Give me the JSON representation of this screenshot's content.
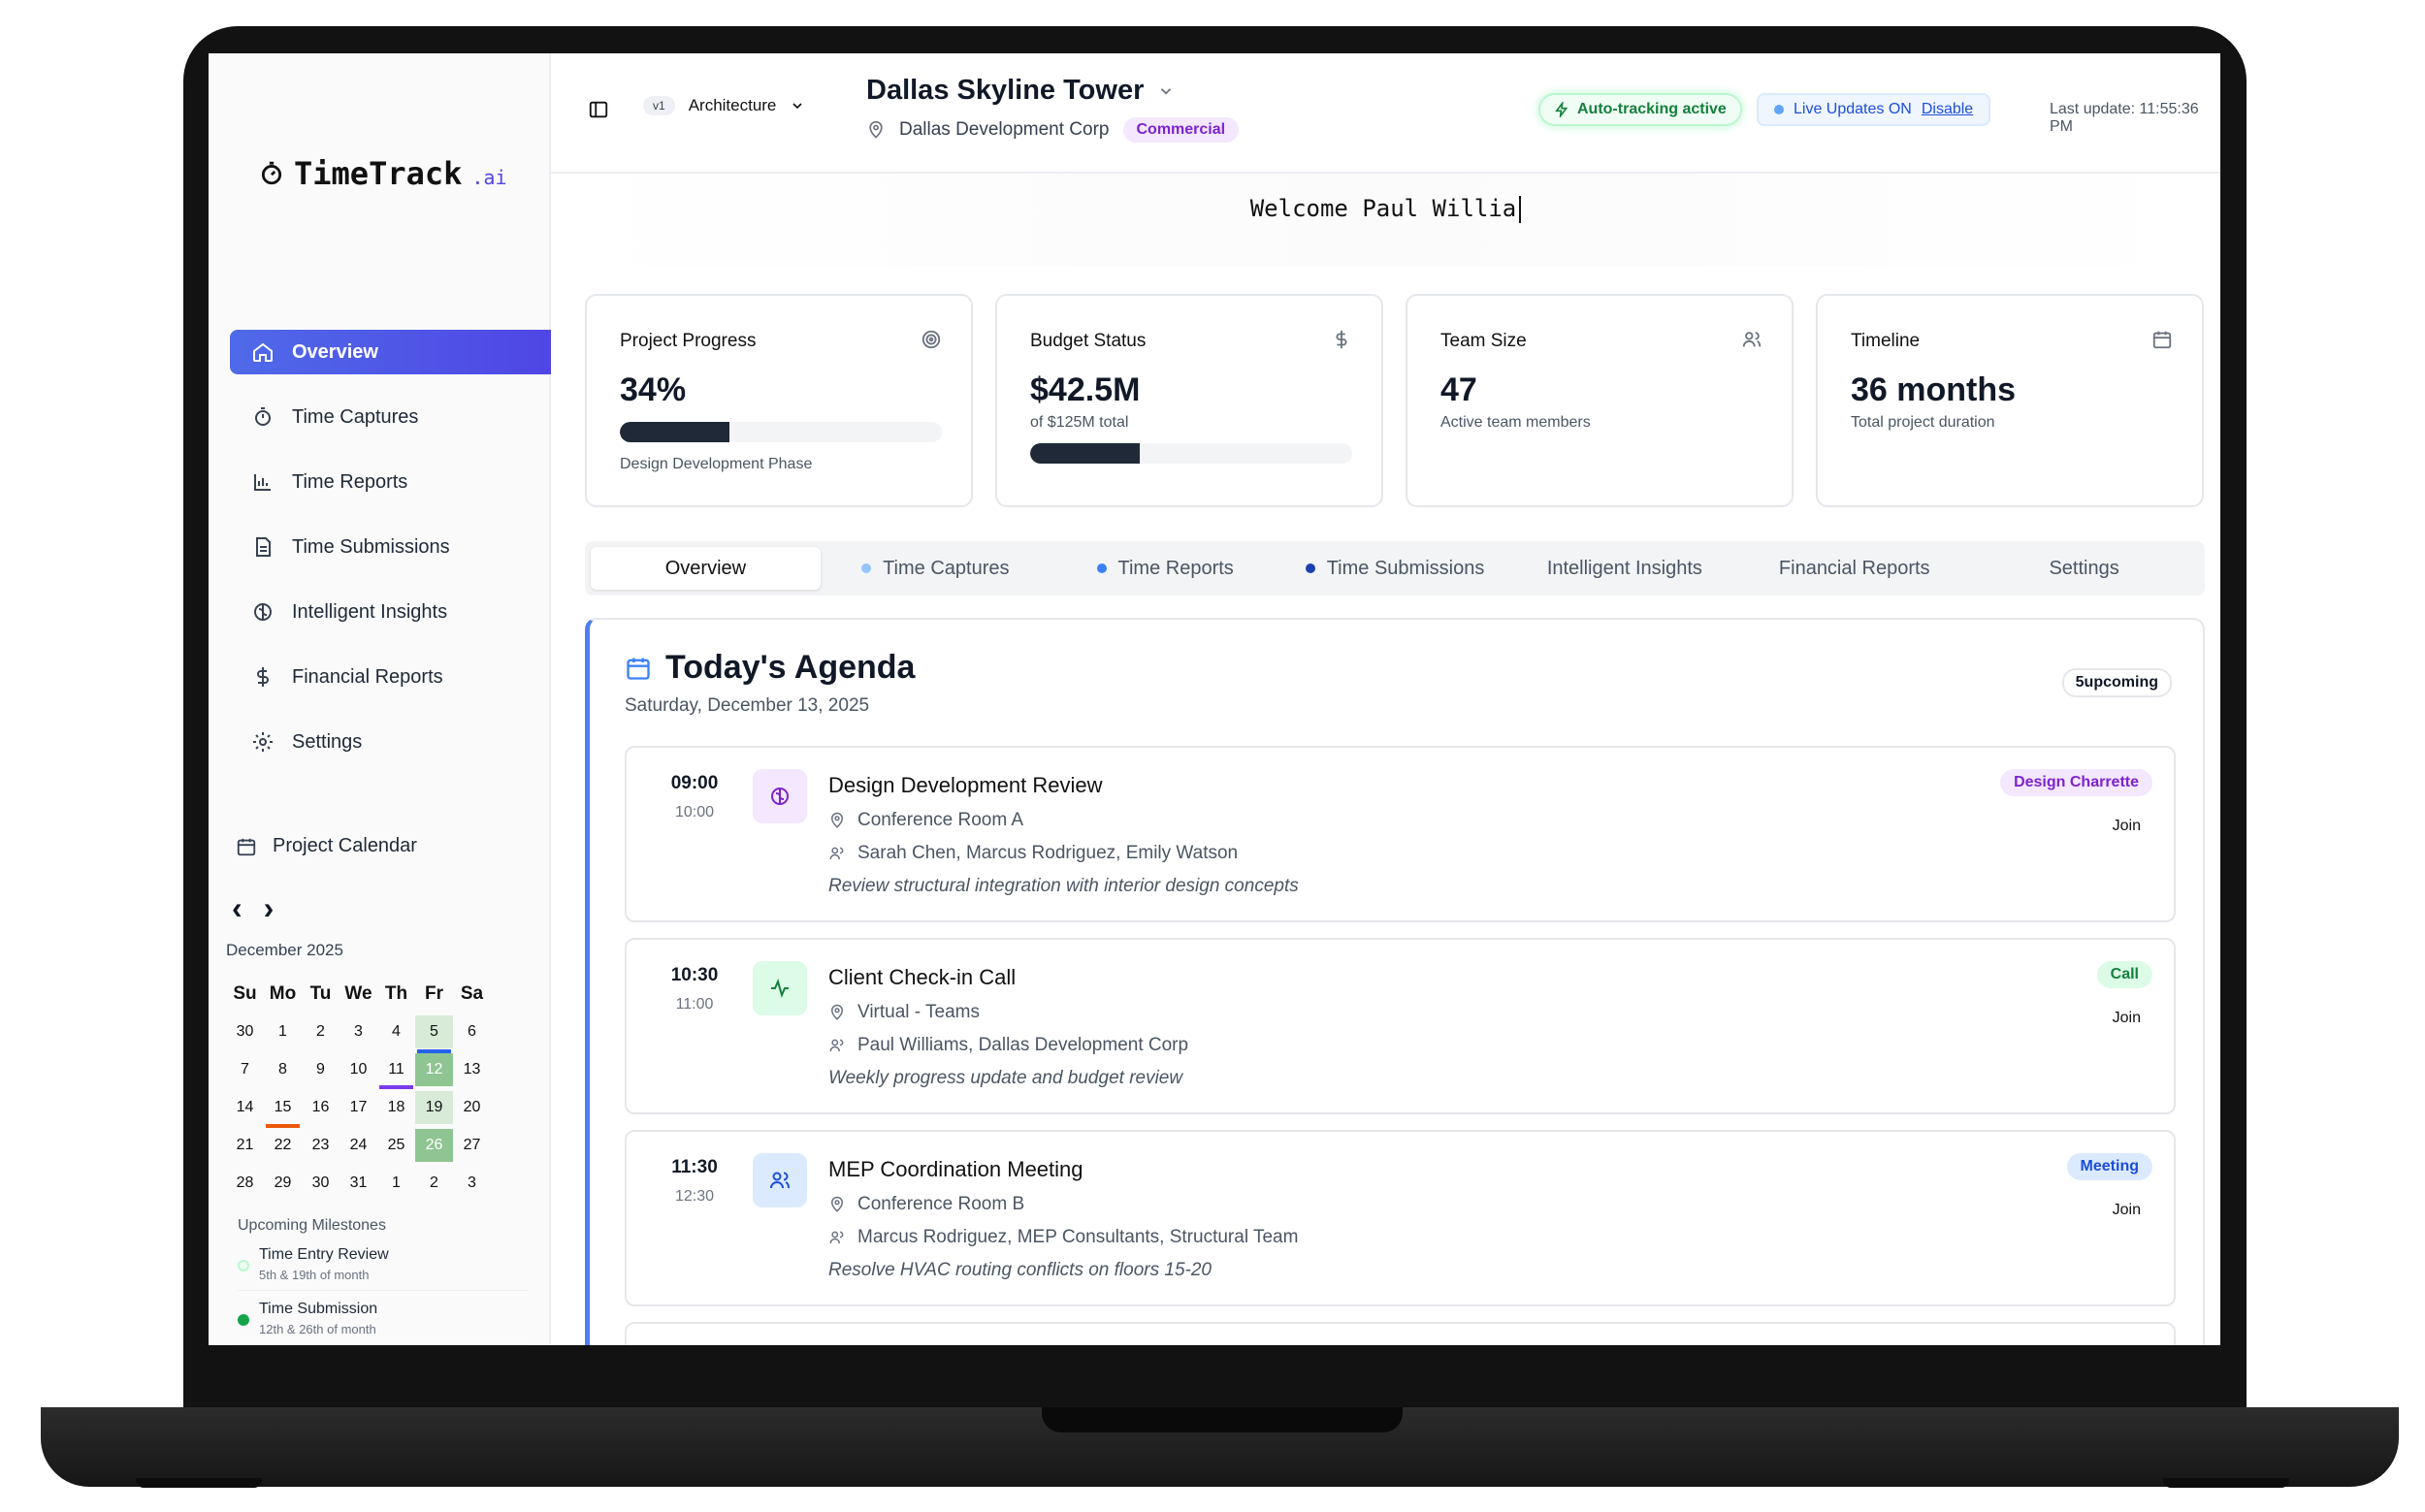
{
  "app": {
    "logo_text": "TimeTrack",
    "logo_suffix": ".ai"
  },
  "sidebar": {
    "items": [
      {
        "label": "Overview",
        "icon": "home-icon",
        "active": true
      },
      {
        "label": "Time Captures",
        "icon": "timer-icon"
      },
      {
        "label": "Time Reports",
        "icon": "bar-chart-icon"
      },
      {
        "label": "Time Submissions",
        "icon": "document-icon"
      },
      {
        "label": "Intelligent Insights",
        "icon": "brain-icon"
      },
      {
        "label": "Financial Reports",
        "icon": "dollar-icon"
      },
      {
        "label": "Settings",
        "icon": "gear-icon"
      }
    ],
    "calendar": {
      "title": "Project Calendar",
      "month": "December 2025",
      "days_of_week": [
        "Su",
        "Mo",
        "Tu",
        "We",
        "Th",
        "Fr",
        "Sa"
      ],
      "weeks": [
        [
          "30",
          "1",
          "2",
          "3",
          "4",
          "5",
          "6"
        ],
        [
          "7",
          "8",
          "9",
          "10",
          "11",
          "12",
          "13"
        ],
        [
          "14",
          "15",
          "16",
          "17",
          "18",
          "19",
          "20"
        ],
        [
          "21",
          "22",
          "23",
          "24",
          "25",
          "26",
          "27"
        ],
        [
          "28",
          "29",
          "30",
          "31",
          "1",
          "2",
          "3"
        ]
      ]
    },
    "milestones": {
      "title": "Upcoming Milestones",
      "items": [
        {
          "name": "Time Entry Review",
          "sub": "5th & 19th of month",
          "color": "#86efac"
        },
        {
          "name": "Time Submission",
          "sub": "12th & 26th of month",
          "color": "#16a34a"
        }
      ]
    }
  },
  "header": {
    "version_badge": "v1",
    "version_label": "Architecture",
    "project_title": "Dallas Skyline Tower",
    "client": "Dallas Development Corp",
    "type_tag": "Commercial",
    "auto_tracking": "Auto-tracking active",
    "live_updates": "Live Updates ON",
    "disable_link": "Disable",
    "last_update": "Last update: 11:55:36 PM"
  },
  "welcome": {
    "text": "Welcome Paul Willia"
  },
  "stats": [
    {
      "label": "Project Progress",
      "value": "34%",
      "sub": "Design Development Phase",
      "progress": 0.34,
      "icon": "target-icon"
    },
    {
      "label": "Budget Status",
      "value": "$42.5M",
      "sub": "of $125M total",
      "progress": 0.34,
      "icon": "dollar-icon"
    },
    {
      "label": "Team Size",
      "value": "47",
      "sub": "Active team members",
      "icon": "users-icon"
    },
    {
      "label": "Timeline",
      "value": "36 months",
      "sub": "Total project duration",
      "icon": "calendar-icon"
    }
  ],
  "tabs": [
    {
      "label": "Overview",
      "active": true
    },
    {
      "label": "Time Captures",
      "dot": "#93c5fd"
    },
    {
      "label": "Time Reports",
      "dot": "#3b82f6"
    },
    {
      "label": "Time Submissions",
      "dot": "#1e40af"
    },
    {
      "label": "Intelligent Insights"
    },
    {
      "label": "Financial Reports"
    },
    {
      "label": "Settings"
    }
  ],
  "agenda": {
    "title": "Today's Agenda",
    "date": "Saturday, December 13, 2025",
    "count_badge": "5upcoming",
    "events": [
      {
        "start": "09:00",
        "end": "10:00",
        "name": "Design Development Review",
        "location": "Conference Room A",
        "attendees": "Sarah Chen, Marcus Rodriguez, Emily Watson",
        "note": "Review structural integration with interior design concepts",
        "badge": "Design Charrette",
        "badge_bg": "#f3e8ff",
        "badge_color": "#7e22ce",
        "icon": "brain-icon",
        "icon_bg": "#f3e8ff",
        "icon_color": "#7e22ce",
        "join": "Join"
      },
      {
        "start": "10:30",
        "end": "11:00",
        "name": "Client Check-in Call",
        "location": "Virtual - Teams",
        "attendees": "Paul Williams, Dallas Development Corp",
        "note": "Weekly progress update and budget review",
        "badge": "Call",
        "badge_bg": "#dcfce7",
        "badge_color": "#15803d",
        "icon": "activity-icon",
        "icon_bg": "#dcfce7",
        "icon_color": "#15803d",
        "join": "Join"
      },
      {
        "start": "11:30",
        "end": "12:30",
        "name": "MEP Coordination Meeting",
        "location": "Conference Room B",
        "attendees": "Marcus Rodriguez, MEP Consultants, Structural Team",
        "note": "Resolve HVAC routing conflicts on floors 15-20",
        "badge": "Meeting",
        "badge_bg": "#dbeafe",
        "badge_color": "#1d4ed8",
        "icon": "users-icon",
        "icon_bg": "#dbeafe",
        "icon_color": "#1d4ed8",
        "join": "Join"
      }
    ]
  }
}
